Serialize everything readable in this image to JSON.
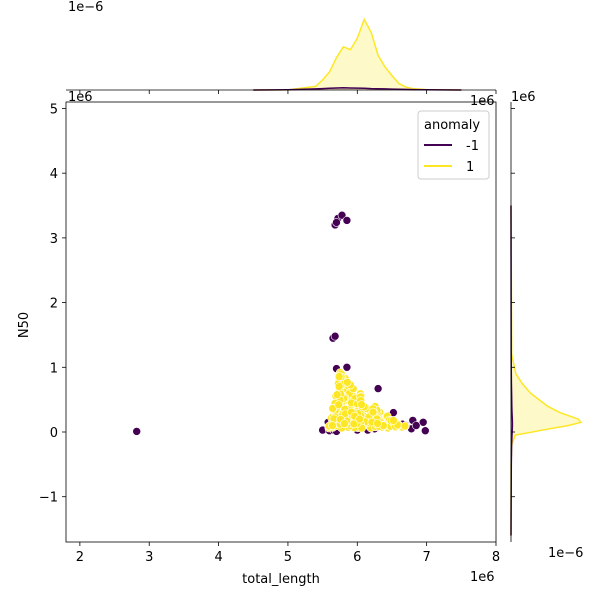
{
  "chart_data": {
    "type": "scatter",
    "title": "",
    "xlabel": "total_length",
    "ylabel": "N50",
    "x_offset_label": "1e6",
    "y_offset_label": "1e6",
    "top_marginal_offset_label": "1e−6",
    "right_marginal_offset_label": "1e−6",
    "right_marginal_top_offset_label": "1e6",
    "xlim": [
      1.8,
      8.0
    ],
    "ylim": [
      -1.7,
      5.1
    ],
    "xticks": [
      2,
      3,
      4,
      5,
      6,
      7,
      8
    ],
    "yticks": [
      -1,
      0,
      1,
      2,
      3,
      4,
      5
    ],
    "units": "x and y values in units of 1e6",
    "legend": {
      "title": "anomaly",
      "position": "top-right",
      "entries": [
        {
          "label": "-1",
          "color": "#440154"
        },
        {
          "label": "1",
          "color": "#fde725"
        }
      ]
    },
    "series": [
      {
        "name": "-1",
        "color": "#440154",
        "points": [
          [
            2.82,
            0.01
          ],
          [
            5.68,
            3.2
          ],
          [
            5.72,
            3.3
          ],
          [
            5.78,
            3.35
          ],
          [
            5.85,
            3.27
          ],
          [
            5.7,
            3.24
          ],
          [
            5.65,
            1.45
          ],
          [
            5.68,
            1.48
          ],
          [
            5.5,
            0.03
          ],
          [
            5.6,
            0.02
          ],
          [
            5.66,
            0.03
          ],
          [
            5.7,
            0.01
          ],
          [
            6.0,
            0.03
          ],
          [
            6.6,
            0.1
          ],
          [
            6.65,
            0.12
          ],
          [
            6.7,
            0.1
          ],
          [
            6.78,
            0.05
          ],
          [
            6.8,
            0.18
          ],
          [
            6.95,
            0.15
          ],
          [
            6.98,
            0.02
          ],
          [
            6.3,
            0.67
          ],
          [
            5.7,
            0.98
          ],
          [
            5.85,
            1.0
          ],
          [
            6.15,
            0.03
          ],
          [
            6.25,
            0.05
          ],
          [
            5.58,
            0.15
          ],
          [
            5.75,
            0.6
          ],
          [
            6.45,
            0.25
          ],
          [
            6.52,
            0.3
          ],
          [
            6.85,
            0.1
          ]
        ]
      },
      {
        "name": "1",
        "color": "#fde725",
        "generated_cluster": {
          "count": 320,
          "x_range": [
            5.55,
            6.75
          ],
          "y_range": [
            0.08,
            0.95
          ],
          "apex": [
            5.75,
            0.95
          ],
          "base_left": [
            5.55,
            0.08
          ],
          "base_right": [
            6.75,
            0.08
          ]
        }
      }
    ],
    "marginal_top": {
      "type": "kde",
      "x": [
        4.5,
        5.0,
        5.4,
        5.5,
        5.6,
        5.7,
        5.8,
        5.9,
        6.0,
        6.1,
        6.2,
        6.3,
        6.4,
        6.5,
        6.6,
        6.7,
        6.8,
        7.0,
        7.5
      ],
      "series": [
        {
          "name": "1",
          "color": "#fde725",
          "y": [
            0,
            0.002,
            0.05,
            0.14,
            0.25,
            0.45,
            0.6,
            0.56,
            0.72,
            0.98,
            0.8,
            0.48,
            0.32,
            0.2,
            0.09,
            0.04,
            0.02,
            0.005,
            0
          ]
        },
        {
          "name": "-1",
          "color": "#440154",
          "y": [
            0,
            0.004,
            0.015,
            0.02,
            0.025,
            0.028,
            0.03,
            0.028,
            0.026,
            0.024,
            0.02,
            0.018,
            0.015,
            0.012,
            0.01,
            0.008,
            0.006,
            0.003,
            0
          ]
        }
      ]
    },
    "marginal_right": {
      "type": "kde",
      "y": [
        -1.6,
        -0.5,
        -0.2,
        -0.05,
        0.05,
        0.1,
        0.15,
        0.2,
        0.3,
        0.4,
        0.5,
        0.6,
        0.75,
        0.9,
        1.2,
        3.5
      ],
      "series": [
        {
          "name": "1",
          "color": "#fde725",
          "x": [
            0,
            0.002,
            0.01,
            0.06,
            0.55,
            0.82,
            1.0,
            0.96,
            0.7,
            0.52,
            0.4,
            0.28,
            0.16,
            0.07,
            0.01,
            0
          ]
        },
        {
          "name": "-1",
          "color": "#440154",
          "x": [
            0,
            0.004,
            0.008,
            0.014,
            0.018,
            0.02,
            0.02,
            0.018,
            0.014,
            0.012,
            0.01,
            0.008,
            0.006,
            0.004,
            0.003,
            0
          ]
        }
      ]
    }
  }
}
